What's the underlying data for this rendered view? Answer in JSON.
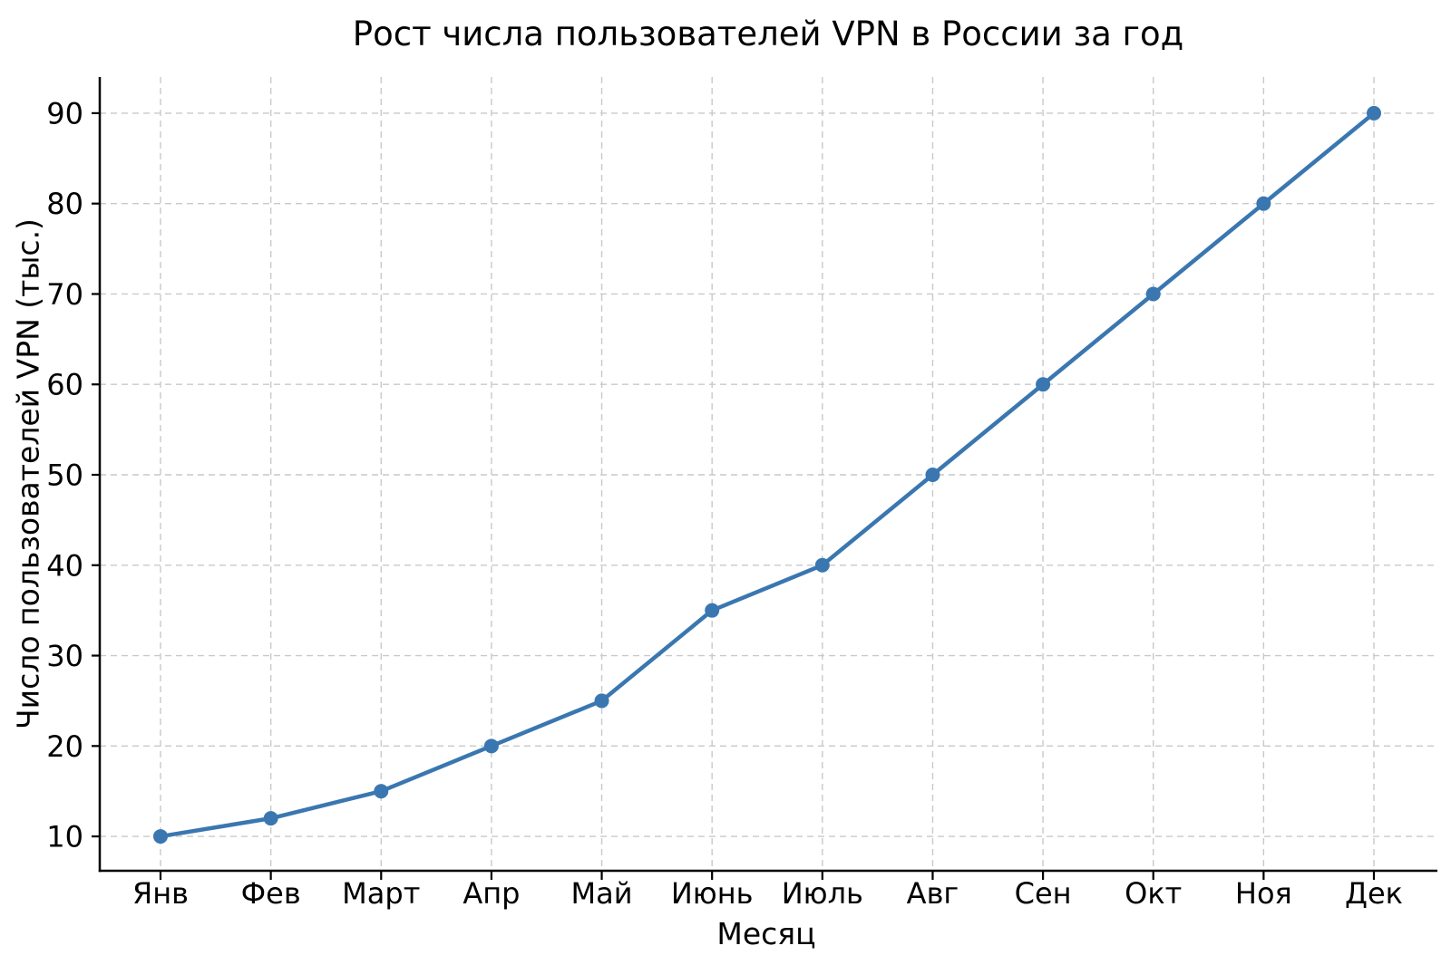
{
  "chart_data": {
    "type": "line",
    "title": "Рост числа пользователей VPN в России за год",
    "xlabel": "Месяц",
    "ylabel": "Число пользователей VPN (тыс.)",
    "categories": [
      "Янв",
      "Фев",
      "Март",
      "Апр",
      "Май",
      "Июнь",
      "Июль",
      "Авг",
      "Сен",
      "Окт",
      "Ноя",
      "Дек"
    ],
    "values": [
      10,
      12,
      15,
      20,
      25,
      35,
      40,
      50,
      60,
      70,
      80,
      90
    ],
    "yticks": [
      10,
      20,
      30,
      40,
      50,
      60,
      70,
      80,
      90
    ],
    "ylim": [
      6.2,
      94
    ],
    "grid": true,
    "legend_position": "none",
    "colors": {
      "line": "#3a77b0",
      "marker": "#3a77b0",
      "grid": "#c9c9c9",
      "axis": "#000000",
      "text": "#000000",
      "background": "#ffffff"
    }
  }
}
